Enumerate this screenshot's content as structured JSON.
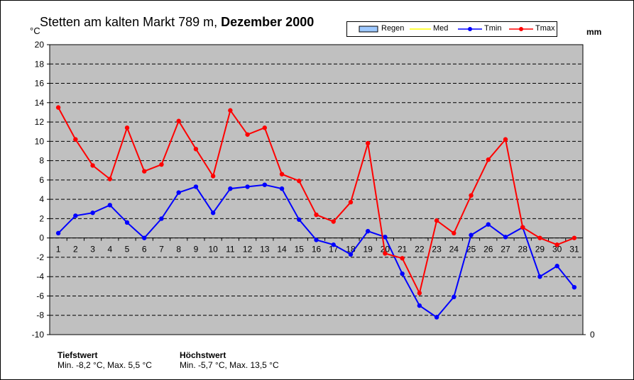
{
  "title": {
    "prefix": "Stetten am kalten Markt 789 m,",
    "bold": "Dezember 2000"
  },
  "units": {
    "left": "°C",
    "right": "mm"
  },
  "legend": [
    {
      "name": "Regen",
      "color": "#9ec9ff",
      "kind": "box"
    },
    {
      "name": "Med",
      "color": "#ffff00",
      "kind": "line"
    },
    {
      "name": "Tmin",
      "color": "#0000ff",
      "kind": "line"
    },
    {
      "name": "Tmax",
      "color": "#ff0000",
      "kind": "line"
    }
  ],
  "footer": {
    "min_heading": "Tiefstwert",
    "min_text": "Min. -8,2 °C, Max. 5,5 °C",
    "max_heading": "Höchstwert",
    "max_text": "Min. -5,7 °C, Max. 13,5 °C"
  },
  "colors": {
    "plot_bg": "#c0c0c0",
    "tmin": "#0000ff",
    "tmax": "#ff0000"
  },
  "chart_data": {
    "type": "line",
    "title": "Stetten am kalten Markt 789 m, Dezember 2000",
    "x": [
      1,
      2,
      3,
      4,
      5,
      6,
      7,
      8,
      9,
      10,
      11,
      12,
      13,
      14,
      15,
      16,
      17,
      18,
      19,
      20,
      21,
      22,
      23,
      24,
      25,
      26,
      27,
      28,
      29,
      30,
      31
    ],
    "ylim": [
      -10,
      20
    ],
    "yticks": [
      -10,
      -8,
      -6,
      -4,
      -2,
      0,
      2,
      4,
      6,
      8,
      10,
      12,
      14,
      16,
      18,
      20
    ],
    "y2_tick": "0",
    "grid": "horizontal dashed",
    "legend_position": "top-right",
    "series": [
      {
        "name": "Tmin",
        "color": "#0000ff",
        "values": [
          0.5,
          2.3,
          2.6,
          3.4,
          1.6,
          0.0,
          2.0,
          4.7,
          5.3,
          2.6,
          5.1,
          5.3,
          5.5,
          5.1,
          1.9,
          -0.2,
          -0.7,
          -1.7,
          0.7,
          0.1,
          -3.7,
          -7.0,
          -8.2,
          -6.1,
          0.3,
          1.4,
          0.1,
          1.1,
          -4.0,
          -2.9,
          -5.1
        ]
      },
      {
        "name": "Tmax",
        "color": "#ff0000",
        "values": [
          13.5,
          10.2,
          7.5,
          6.1,
          11.4,
          6.9,
          7.6,
          12.1,
          9.2,
          6.4,
          13.2,
          10.7,
          11.4,
          6.6,
          5.9,
          2.4,
          1.7,
          3.7,
          9.8,
          -1.6,
          -2.1,
          -5.7,
          1.8,
          0.5,
          4.4,
          8.1,
          10.2,
          1.1,
          0.0,
          -0.7,
          0.0
        ]
      }
    ]
  }
}
